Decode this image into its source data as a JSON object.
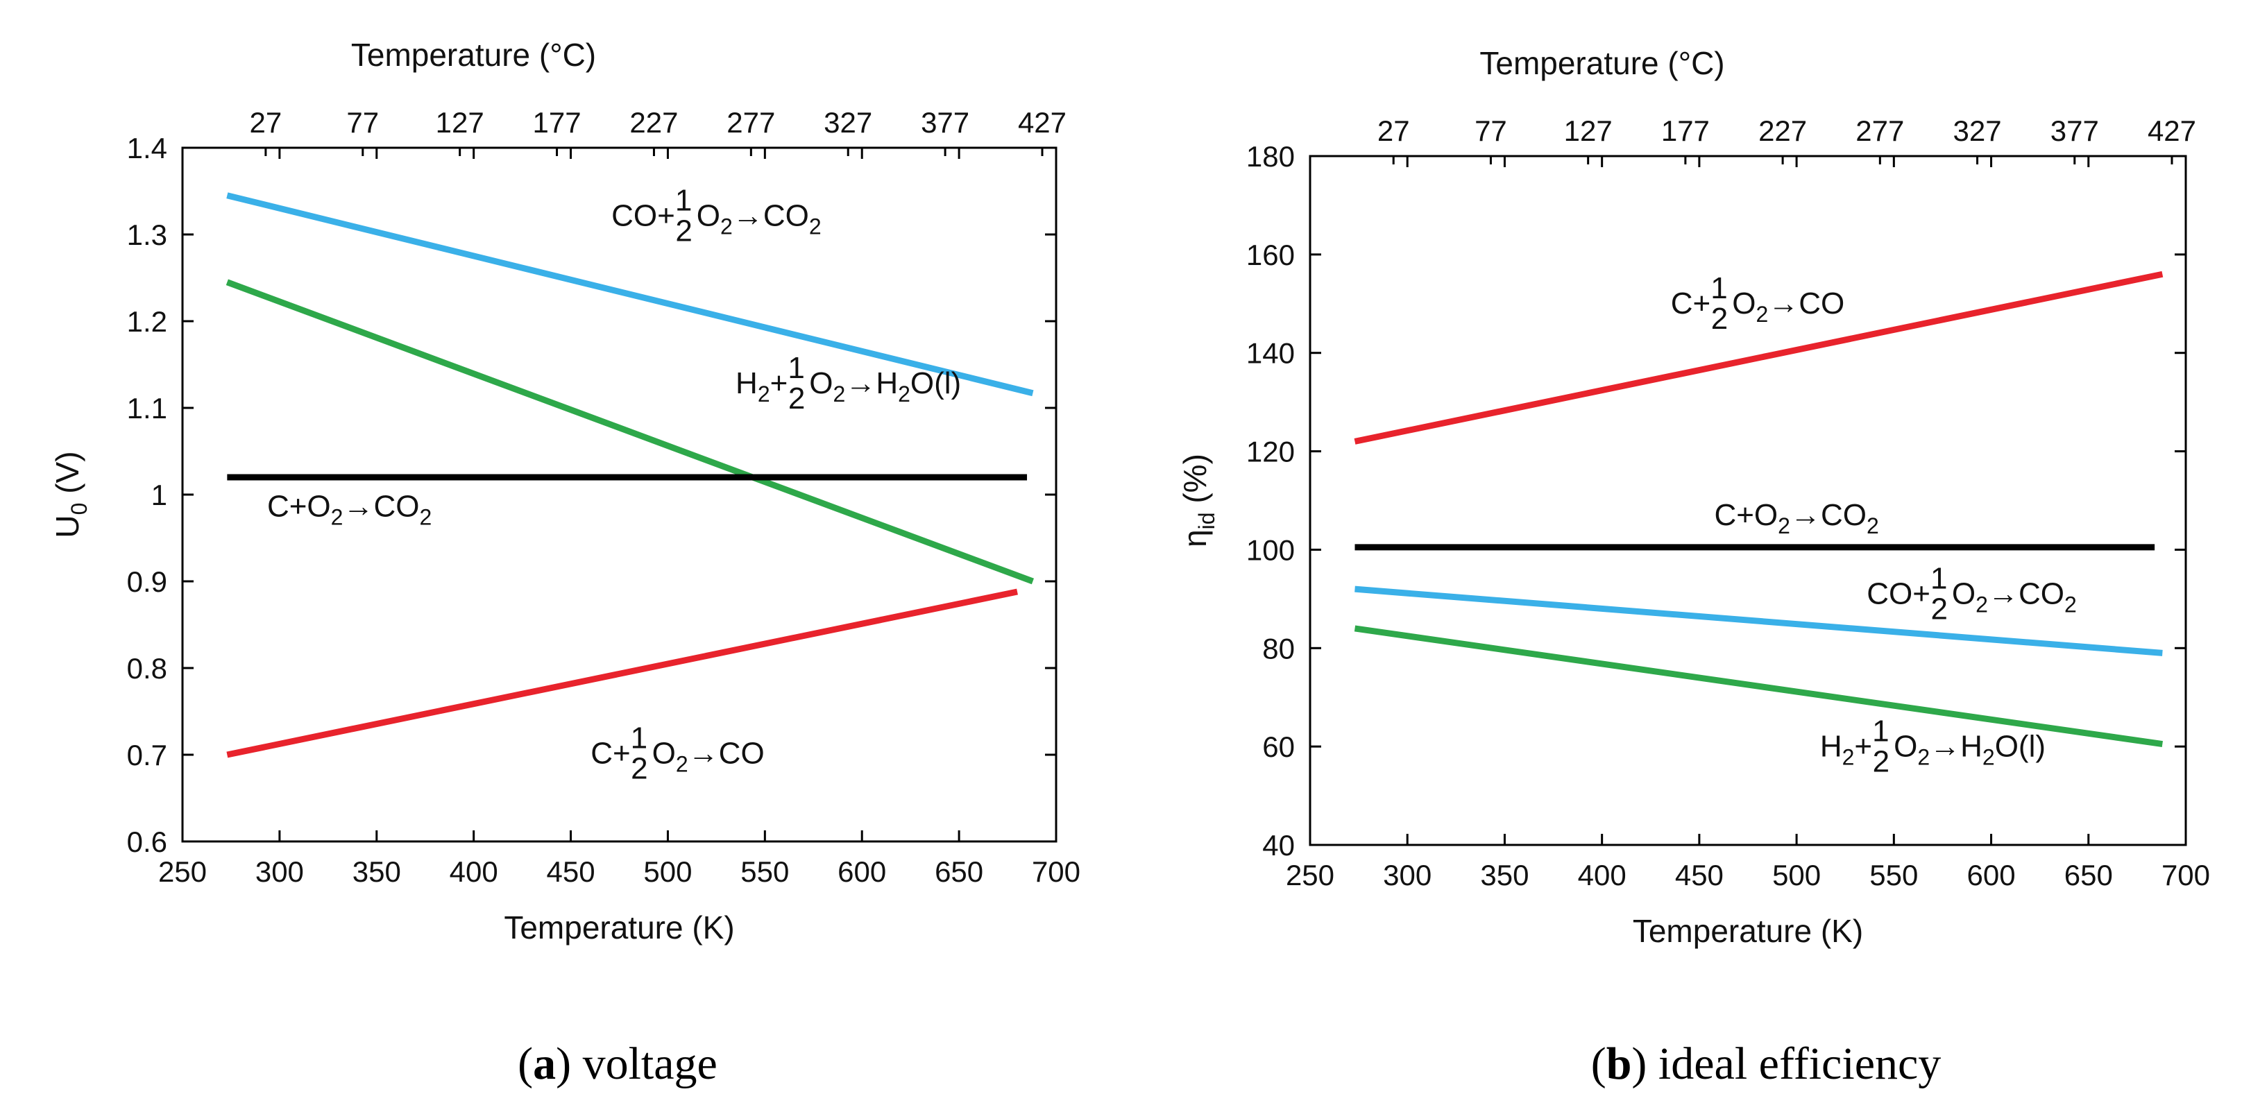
{
  "chart_data": [
    {
      "id": "a",
      "type": "line",
      "caption_letter": "a",
      "caption_text": " voltage",
      "xlabel": "Temperature (K)",
      "x2label": "Temperature (°C)",
      "ylabel": "U0 (V)",
      "ylabel_main": "U",
      "ylabel_sub": "0",
      "ylabel_unit": " (V)",
      "xlim": [
        250,
        700
      ],
      "ylim": [
        0.6,
        1.4
      ],
      "xticks": [
        250,
        300,
        350,
        400,
        450,
        500,
        550,
        600,
        650,
        700
      ],
      "xtick_labels": [
        "250",
        "300",
        "350",
        "400",
        "450",
        "500",
        "550",
        "600",
        "650",
        "700"
      ],
      "yticks": [
        0.6,
        0.7,
        0.8,
        0.9,
        1.0,
        1.1,
        1.2,
        1.3,
        1.4
      ],
      "ytick_labels": [
        "0.6",
        "0.7",
        "0.8",
        "0.9",
        "1",
        "1.1",
        "1.2",
        "1.3",
        "1.4"
      ],
      "top_ticks_K": [
        300,
        350,
        400,
        450,
        500,
        550,
        600,
        650,
        700
      ],
      "top_tick_labels": [
        "27",
        "77",
        "127",
        "177",
        "227",
        "277",
        "327",
        "377",
        "427"
      ],
      "series": [
        {
          "name": "CO+1/2O2→CO2",
          "color": "#3ab0e8",
          "x": [
            273,
            688
          ],
          "y": [
            1.345,
            1.117
          ]
        },
        {
          "name": "H2+1/2O2→H2O(l)",
          "color": "#2ea84a",
          "x": [
            273,
            688
          ],
          "y": [
            1.245,
            0.9
          ]
        },
        {
          "name": "C+O2→CO2",
          "color": "#000000",
          "x": [
            273,
            685
          ],
          "y": [
            1.02,
            1.02
          ]
        },
        {
          "name": "C+1/2O2→CO",
          "color": "#e8232c",
          "x": [
            273,
            680
          ],
          "y": [
            0.7,
            0.888
          ]
        }
      ],
      "annotations": [
        {
          "series": "CO+1/2O2→CO2",
          "pre_main": "CO+",
          "pre_sub": "",
          "post_main": "O",
          "post_sub": "2",
          "arrow": "→",
          "prod_main": "CO",
          "prod_sub": "2",
          "prod_tail": "",
          "ax": 525,
          "ay": 1.31
        },
        {
          "series": "H2+1/2O2→H2O(l)",
          "pre_main": "H",
          "pre_sub": "2",
          "pre_tail": "+",
          "post_main": "O",
          "post_sub": "2",
          "arrow": "→",
          "prod_main": "H",
          "prod_sub": "2",
          "prod_tail": "O(l)",
          "ax": 593,
          "ay": 1.117
        },
        {
          "series": "C+O2→CO2",
          "text_parts": [
            "C+O",
            "2",
            "→CO",
            "2"
          ],
          "ax": 336,
          "ay": 0.975
        },
        {
          "series": "C+1/2O2→CO",
          "pre_main": "C+",
          "pre_sub": "",
          "post_main": "O",
          "post_sub": "2",
          "arrow": "→",
          "prod_main": "CO",
          "prod_sub": "",
          "prod_tail": "",
          "ax": 505,
          "ay": 0.69
        }
      ]
    },
    {
      "id": "b",
      "type": "line",
      "caption_letter": "b",
      "caption_text": " ideal efficiency",
      "xlabel": "Temperature (K)",
      "x2label": "Temperature (°C)",
      "ylabel": "ηid (%)",
      "ylabel_main": "η",
      "ylabel_sub": "id",
      "ylabel_unit": " (%)",
      "xlim": [
        250,
        700
      ],
      "ylim": [
        40,
        180
      ],
      "xticks": [
        250,
        300,
        350,
        400,
        450,
        500,
        550,
        600,
        650,
        700
      ],
      "xtick_labels": [
        "250",
        "300",
        "350",
        "400",
        "450",
        "500",
        "550",
        "600",
        "650",
        "700"
      ],
      "yticks": [
        40,
        60,
        80,
        100,
        120,
        140,
        160,
        180
      ],
      "ytick_labels": [
        "40",
        "60",
        "80",
        "100",
        "120",
        "140",
        "160",
        "180"
      ],
      "top_ticks_K": [
        300,
        350,
        400,
        450,
        500,
        550,
        600,
        650,
        700
      ],
      "top_tick_labels": [
        "27",
        "77",
        "127",
        "177",
        "227",
        "277",
        "327",
        "377",
        "427"
      ],
      "series": [
        {
          "name": "C+1/2O2→CO",
          "color": "#e8232c",
          "x": [
            273,
            688
          ],
          "y": [
            122,
            156
          ]
        },
        {
          "name": "C+O2→CO2",
          "color": "#000000",
          "x": [
            273,
            684
          ],
          "y": [
            100.5,
            100.5
          ]
        },
        {
          "name": "CO+1/2O2→CO2",
          "color": "#3ab0e8",
          "x": [
            273,
            688
          ],
          "y": [
            92,
            79
          ]
        },
        {
          "name": "H2+1/2O2→H2O(l)",
          "color": "#2ea84a",
          "x": [
            273,
            688
          ],
          "y": [
            84,
            60.5
          ]
        }
      ],
      "annotations": [
        {
          "series": "C+1/2O2→CO",
          "pre_main": "C+",
          "pre_sub": "",
          "post_main": "O",
          "post_sub": "2",
          "arrow": "→",
          "prod_main": "CO",
          "prod_sub": "",
          "prod_tail": "",
          "ax": 480,
          "ay": 148
        },
        {
          "series": "C+O2→CO2",
          "text_parts": [
            "C+O",
            "2",
            "→CO",
            "2"
          ],
          "ax": 500,
          "ay": 105
        },
        {
          "series": "CO+1/2O2→CO2",
          "pre_main": "CO+",
          "pre_sub": "",
          "post_main": "O",
          "post_sub": "2",
          "arrow": "→",
          "prod_main": "CO",
          "prod_sub": "2",
          "prod_tail": "",
          "ax": 590,
          "ay": 89
        },
        {
          "series": "H2+1/2O2→H2O(l)",
          "pre_main": "H",
          "pre_sub": "2",
          "pre_tail": "+",
          "post_main": "O",
          "post_sub": "2",
          "arrow": "→",
          "prod_main": "H",
          "prod_sub": "2",
          "prod_tail": "O(l)",
          "ax": 570,
          "ay": 58
        }
      ]
    }
  ],
  "fraction": {
    "num": "1",
    "den": "2"
  }
}
